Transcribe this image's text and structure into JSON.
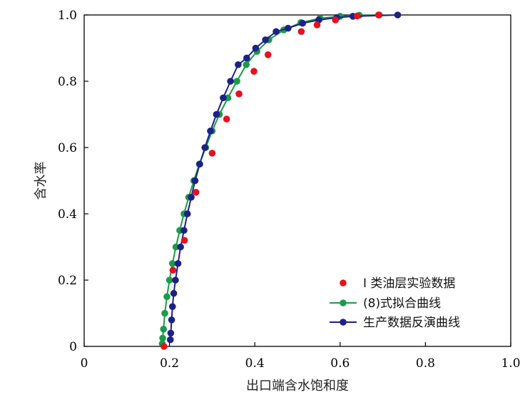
{
  "chart_data": {
    "type": "scatter",
    "xlabel": "出口端含水饱和度",
    "ylabel": "含水率",
    "xlim": [
      0,
      1.0
    ],
    "ylim": [
      0,
      1.0
    ],
    "x_ticks": [
      "0",
      "0.2",
      "0.4",
      "0.6",
      "0.8",
      "1.0"
    ],
    "y_ticks": [
      "0",
      "0.2",
      "0.4",
      "0.6",
      "0.8",
      "1.0"
    ],
    "grid": false,
    "legend_position": "bottom-right",
    "series": [
      {
        "name": "I 类油层实验数据",
        "mode": "markers",
        "color": "#e8101e",
        "x": [
          0.187,
          0.208,
          0.235,
          0.262,
          0.3,
          0.334,
          0.363,
          0.398,
          0.431,
          0.509,
          0.546,
          0.589,
          0.64,
          0.69
        ],
        "y": [
          0.0,
          0.23,
          0.32,
          0.465,
          0.583,
          0.686,
          0.762,
          0.83,
          0.88,
          0.95,
          0.97,
          0.985,
          0.997,
          1.0
        ]
      },
      {
        "name": "(8)式拟合曲线",
        "mode": "lines+markers",
        "color": "#1a9b4a",
        "x": [
          0.183,
          0.184,
          0.186,
          0.189,
          0.194,
          0.2,
          0.207,
          0.215,
          0.224,
          0.234,
          0.245,
          0.257,
          0.27,
          0.285,
          0.3,
          0.317,
          0.337,
          0.358,
          0.38,
          0.405,
          0.433,
          0.468,
          0.508,
          0.553,
          0.6,
          0.645,
          0.692
        ],
        "y": [
          0.008,
          0.025,
          0.052,
          0.1,
          0.15,
          0.2,
          0.25,
          0.3,
          0.35,
          0.4,
          0.45,
          0.5,
          0.55,
          0.6,
          0.65,
          0.7,
          0.75,
          0.8,
          0.85,
          0.89,
          0.925,
          0.955,
          0.977,
          0.99,
          0.996,
          0.999,
          1.0
        ]
      },
      {
        "name": "生产数据反演曲线",
        "mode": "lines+markers",
        "color": "#1c2184",
        "x": [
          0.202,
          0.203,
          0.205,
          0.207,
          0.21,
          0.214,
          0.22,
          0.226,
          0.234,
          0.242,
          0.251,
          0.26,
          0.271,
          0.283,
          0.296,
          0.31,
          0.326,
          0.343,
          0.361,
          0.381,
          0.402,
          0.425,
          0.45,
          0.478,
          0.512,
          0.55,
          0.592,
          0.63,
          0.735
        ],
        "y": [
          0.02,
          0.04,
          0.08,
          0.12,
          0.16,
          0.2,
          0.25,
          0.3,
          0.35,
          0.4,
          0.45,
          0.5,
          0.55,
          0.6,
          0.65,
          0.7,
          0.75,
          0.8,
          0.85,
          0.87,
          0.9,
          0.925,
          0.95,
          0.96,
          0.975,
          0.985,
          0.992,
          0.996,
          1.0
        ]
      }
    ]
  }
}
